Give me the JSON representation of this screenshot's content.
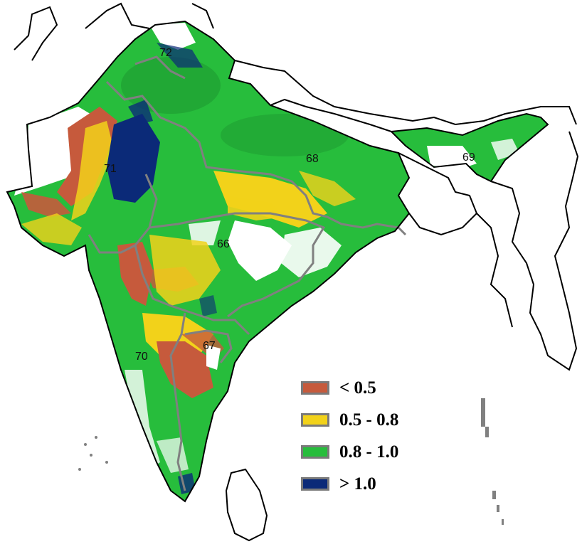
{
  "colors": {
    "class_lt_0_5": "#c65a3c",
    "class_0_5_0_8": "#f2d21a",
    "class_0_8_1_0": "#27bd3c",
    "class_gt_1_0": "#0b2a78",
    "region_boundary": "#808080",
    "country_boundary": "#000000",
    "no_data": "#ffffff"
  },
  "legend": [
    {
      "label": "< 0.5",
      "color_key": "class_lt_0_5"
    },
    {
      "label": "0.5 - 0.8",
      "color_key": "class_0_5_0_8"
    },
    {
      "label": "0.8 - 1.0",
      "color_key": "class_0_8_1_0"
    },
    {
      "label": "> 1.0",
      "color_key": "class_gt_1_0"
    }
  ],
  "region_labels": [
    "72",
    "71",
    "68",
    "69",
    "66",
    "67",
    "70"
  ]
}
